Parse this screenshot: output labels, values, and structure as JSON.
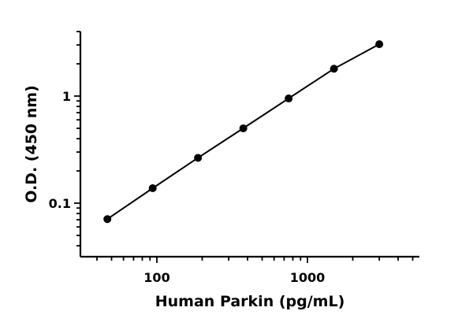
{
  "chart_data": {
    "type": "scatter",
    "xlabel": "Human Parkin (pg/mL)",
    "ylabel": "O.D. (450 nm)",
    "xscale": "log",
    "yscale": "log",
    "xlim": [
      30,
      5500
    ],
    "ylim": [
      0.03,
      4.0
    ],
    "x_ticks": [
      {
        "value": 100,
        "label": "100"
      },
      {
        "value": 1000,
        "label": "1000"
      }
    ],
    "y_ticks": [
      {
        "value": 0.1,
        "label": "0.1"
      },
      {
        "value": 1,
        "label": "1"
      }
    ],
    "grid": false,
    "legend": "none",
    "series": [
      {
        "x": [
          46.9,
          93.8,
          187.5,
          375,
          750,
          1500,
          3000
        ],
        "y": [
          0.071,
          0.138,
          0.265,
          0.5,
          0.95,
          1.8,
          3.05
        ],
        "color": "#000000",
        "marker": "circle",
        "fit_line": true
      }
    ]
  }
}
